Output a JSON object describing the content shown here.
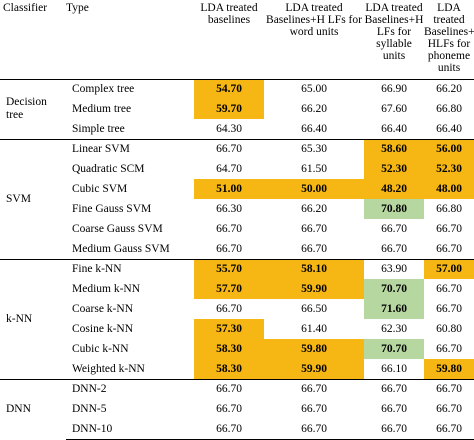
{
  "columns": [
    "Classifier",
    "Type",
    "LDA treated baselines",
    "LDA treated Baselines+H LFs for word units",
    "LDA treated Baselines+H LFs for syllable units",
    "LDA treated Baselines+ HLFs for phoneme units"
  ],
  "groups": [
    {
      "name": "Decision tree",
      "rows": [
        {
          "type": "Complex tree",
          "values": [
            "54.70",
            "65.00",
            "66.90",
            "66.20"
          ],
          "highlight": [
            "orange",
            "",
            "",
            ""
          ]
        },
        {
          "type": "Medium tree",
          "values": [
            "59.70",
            "66.20",
            "67.60",
            "66.80"
          ],
          "highlight": [
            "orange",
            "",
            "",
            ""
          ]
        },
        {
          "type": "Simple tree",
          "values": [
            "64.30",
            "66.40",
            "66.40",
            "66.40"
          ],
          "highlight": [
            "",
            "",
            "",
            ""
          ]
        }
      ]
    },
    {
      "name": "SVM",
      "rows": [
        {
          "type": "Linear SVM",
          "values": [
            "66.70",
            "65.30",
            "58.60",
            "56.00"
          ],
          "highlight": [
            "",
            "",
            "orange",
            "orange"
          ]
        },
        {
          "type": "Quadratic SCM",
          "values": [
            "64.70",
            "61.50",
            "52.30",
            "52.30"
          ],
          "highlight": [
            "",
            "",
            "orange",
            "orange"
          ]
        },
        {
          "type": "Cubic SVM",
          "values": [
            "51.00",
            "50.00",
            "48.20",
            "48.00"
          ],
          "highlight": [
            "orange",
            "orange",
            "orange",
            "orange"
          ]
        },
        {
          "type": "Fine Gauss SVM",
          "values": [
            "66.30",
            "66.20",
            "70.80",
            "66.80"
          ],
          "highlight": [
            "",
            "",
            "green",
            ""
          ]
        },
        {
          "type": "Coarse Gauss SVM",
          "values": [
            "66.70",
            "66.70",
            "66.70",
            "66.70"
          ],
          "highlight": [
            "",
            "",
            "",
            ""
          ]
        },
        {
          "type": "Medium Gauss SVM",
          "values": [
            "66.70",
            "66.70",
            "66.70",
            "66.70"
          ],
          "highlight": [
            "",
            "",
            "",
            ""
          ]
        }
      ]
    },
    {
      "name": "k-NN",
      "rows": [
        {
          "type": "Fine k-NN",
          "values": [
            "55.70",
            "58.10",
            "63.90",
            "57.00"
          ],
          "highlight": [
            "orange",
            "orange",
            "",
            "orange"
          ]
        },
        {
          "type": "Medium k-NN",
          "values": [
            "57.70",
            "59.90",
            "70.70",
            "66.70"
          ],
          "highlight": [
            "orange",
            "orange",
            "green",
            ""
          ]
        },
        {
          "type": "Coarse k-NN",
          "values": [
            "66.70",
            "66.50",
            "71.60",
            "66.70"
          ],
          "highlight": [
            "",
            "",
            "green",
            ""
          ]
        },
        {
          "type": "Cosine k-NN",
          "values": [
            "57.30",
            "61.40",
            "62.30",
            "60.80"
          ],
          "highlight": [
            "orange",
            "",
            "",
            ""
          ]
        },
        {
          "type": "Cubic k-NN",
          "values": [
            "58.30",
            "59.80",
            "70.70",
            "66.70"
          ],
          "highlight": [
            "orange",
            "orange",
            "green",
            ""
          ]
        },
        {
          "type": "Weighted k-NN",
          "values": [
            "58.30",
            "59.90",
            "66.10",
            "59.80"
          ],
          "highlight": [
            "orange",
            "orange",
            "",
            "orange"
          ]
        }
      ]
    },
    {
      "name": "DNN",
      "rows": [
        {
          "type": "DNN-2",
          "values": [
            "66.70",
            "66.70",
            "66.70",
            "66.70"
          ],
          "highlight": [
            "",
            "",
            "",
            ""
          ]
        },
        {
          "type": "DNN-5",
          "values": [
            "66.70",
            "66.70",
            "66.70",
            "66.70"
          ],
          "highlight": [
            "",
            "",
            "",
            ""
          ]
        },
        {
          "type": "DNN-10",
          "values": [
            "66.70",
            "66.70",
            "66.70",
            "66.70"
          ],
          "highlight": [
            "",
            "",
            "",
            ""
          ]
        }
      ]
    }
  ],
  "colors": {
    "orange": "#f6b714",
    "green": "#b6d7a0"
  }
}
